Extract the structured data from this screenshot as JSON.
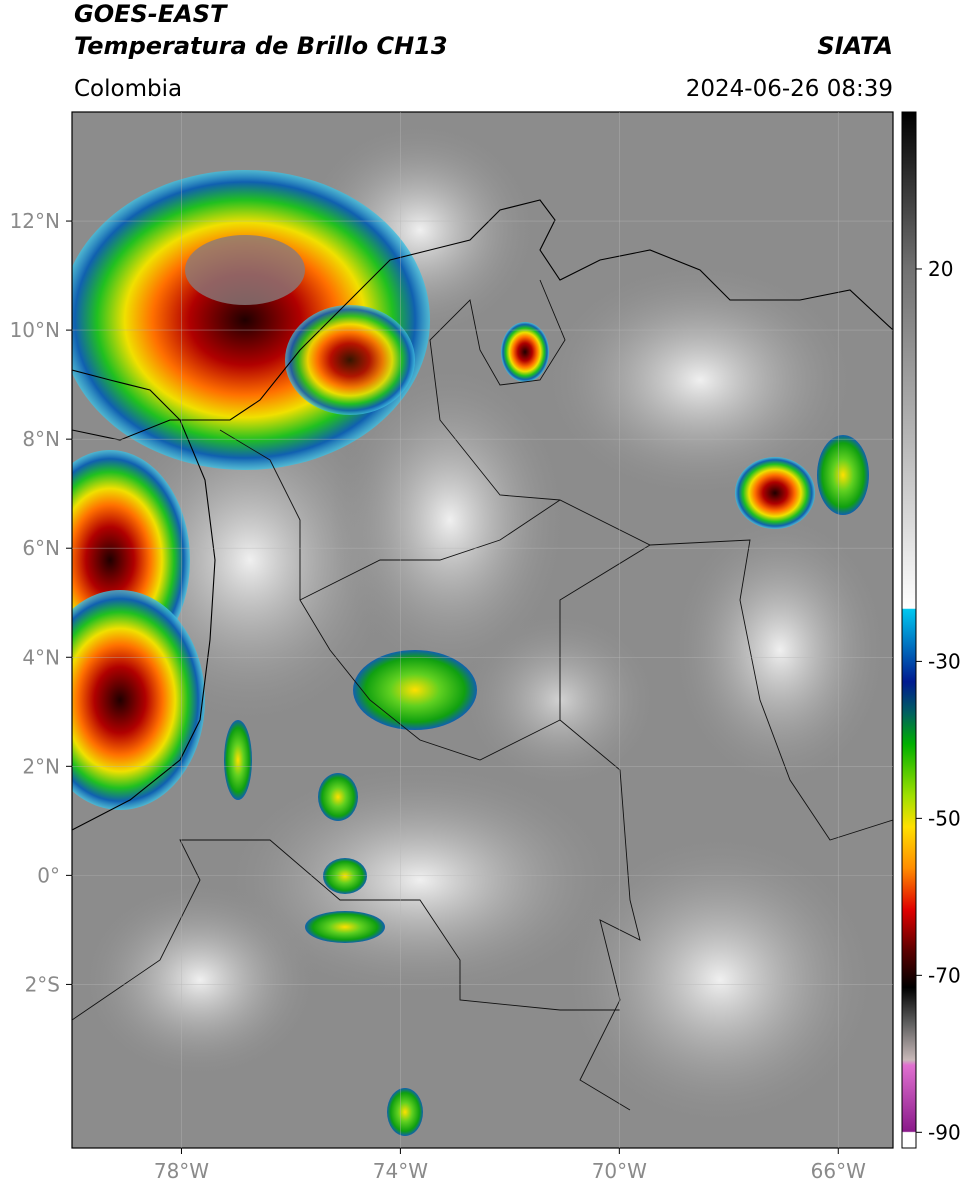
{
  "header": {
    "satellite": "GOES-EAST",
    "product": "Temperatura de Brillo CH13",
    "source": "SIATA",
    "region": "Colombia",
    "datetime": "2024-06-26 08:39"
  },
  "map": {
    "lon_range": [
      -80,
      -65
    ],
    "lat_range": [
      -5,
      14
    ],
    "lon_ticks": [
      {
        "value": -78,
        "label": "78°W"
      },
      {
        "value": -74,
        "label": "74°W"
      },
      {
        "value": -70,
        "label": "70°W"
      },
      {
        "value": -66,
        "label": "66°W"
      }
    ],
    "lat_ticks": [
      {
        "value": 12,
        "label": "12°N"
      },
      {
        "value": 10,
        "label": "10°N"
      },
      {
        "value": 8,
        "label": "8°N"
      },
      {
        "value": 6,
        "label": "6°N"
      },
      {
        "value": 4,
        "label": "4°N"
      },
      {
        "value": 2,
        "label": "2°N"
      },
      {
        "value": 0,
        "label": "0°"
      },
      {
        "value": -2,
        "label": "2°S"
      }
    ]
  },
  "colorbar": {
    "range": [
      -92,
      40
    ],
    "ticks": [
      20,
      -30,
      -50,
      -70,
      -90
    ]
  }
}
